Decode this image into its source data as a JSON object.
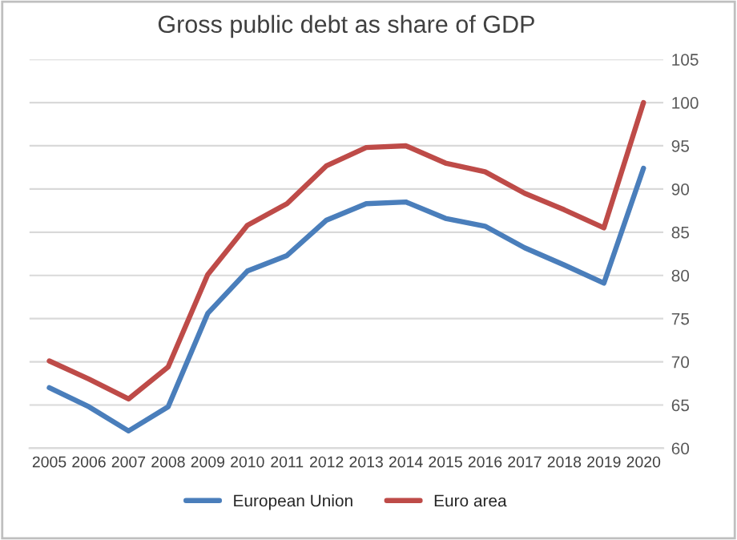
{
  "chart_data": {
    "type": "line",
    "title": "Gross public debt as share of GDP",
    "categories": [
      "2005",
      "2006",
      "2007",
      "2008",
      "2009",
      "2010",
      "2011",
      "2012",
      "2013",
      "2014",
      "2015",
      "2016",
      "2017",
      "2018",
      "2019",
      "2020"
    ],
    "series": [
      {
        "name": "European Union",
        "color": "#4a7ebb",
        "values": [
          67.0,
          64.8,
          62.0,
          64.8,
          75.6,
          80.5,
          82.3,
          86.4,
          88.3,
          88.5,
          86.6,
          85.7,
          83.2,
          81.2,
          79.1,
          92.4
        ]
      },
      {
        "name": "Euro area",
        "color": "#be4b48",
        "values": [
          70.1,
          68.0,
          65.7,
          69.4,
          80.1,
          85.8,
          88.3,
          92.7,
          94.8,
          95.0,
          93.0,
          92.0,
          89.5,
          87.6,
          85.5,
          100.0
        ]
      }
    ],
    "ylim": [
      60,
      105
    ],
    "yticks": [
      60,
      65,
      70,
      75,
      80,
      85,
      90,
      95,
      100,
      105
    ],
    "grid": "y",
    "legend": "bottom"
  }
}
